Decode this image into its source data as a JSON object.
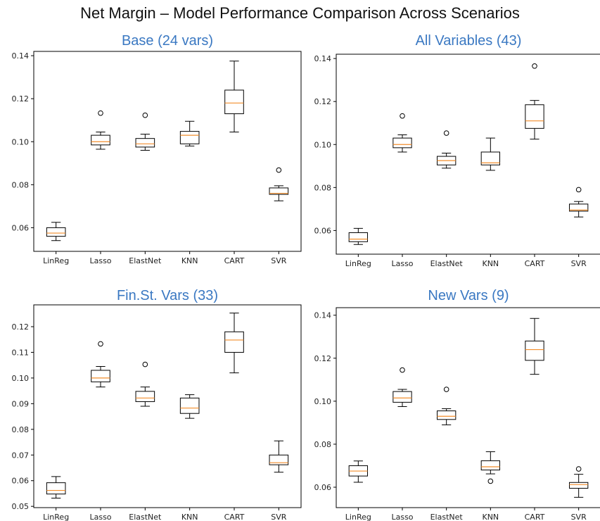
{
  "title": "Net Margin – Model Performance Comparison Across Scenarios",
  "colors": {
    "subtitle": "#3a78c2",
    "box_stroke": "#000000",
    "median": "#f28e2b",
    "background": "#ffffff"
  },
  "chart_data": [
    {
      "type": "box",
      "title": "Base (24 vars)",
      "categories": [
        "LinReg",
        "Lasso",
        "ElastNet",
        "KNN",
        "CART",
        "SVR"
      ],
      "ylim": [
        0.049,
        0.142
      ],
      "yticks": [
        0.06,
        0.08,
        0.1,
        0.12,
        0.14
      ],
      "ytick_labels": [
        "0.06",
        "0.08",
        "0.10",
        "0.12",
        "0.14"
      ],
      "boxes": [
        {
          "whislo": 0.054,
          "q1": 0.056,
          "med": 0.0575,
          "q3": 0.06,
          "whishi": 0.0625,
          "fliers": []
        },
        {
          "whislo": 0.0965,
          "q1": 0.0985,
          "med": 0.1,
          "q3": 0.103,
          "whishi": 0.1045,
          "fliers": [
            0.1133
          ]
        },
        {
          "whislo": 0.096,
          "q1": 0.0975,
          "med": 0.099,
          "q3": 0.1015,
          "whishi": 0.1035,
          "fliers": [
            0.1123
          ]
        },
        {
          "whislo": 0.098,
          "q1": 0.099,
          "med": 0.103,
          "q3": 0.1048,
          "whishi": 0.1095,
          "fliers": []
        },
        {
          "whislo": 0.1045,
          "q1": 0.113,
          "med": 0.118,
          "q3": 0.124,
          "whishi": 0.1375,
          "fliers": []
        },
        {
          "whislo": 0.0725,
          "q1": 0.0755,
          "med": 0.076,
          "q3": 0.0785,
          "whishi": 0.0795,
          "fliers": [
            0.0868
          ]
        }
      ]
    },
    {
      "type": "box",
      "title": "All Variables (43)",
      "categories": [
        "LinReg",
        "Lasso",
        "ElastNet",
        "KNN",
        "CART",
        "SVR"
      ],
      "ylim": [
        0.049,
        0.142
      ],
      "yticks": [
        0.06,
        0.08,
        0.1,
        0.12,
        0.14
      ],
      "ytick_labels": [
        "0.06",
        "0.08",
        "0.10",
        "0.12",
        "0.14"
      ],
      "boxes": [
        {
          "whislo": 0.0535,
          "q1": 0.0548,
          "med": 0.056,
          "q3": 0.059,
          "whishi": 0.061,
          "fliers": []
        },
        {
          "whislo": 0.0965,
          "q1": 0.0985,
          "med": 0.1,
          "q3": 0.103,
          "whishi": 0.1045,
          "fliers": [
            0.1133
          ]
        },
        {
          "whislo": 0.089,
          "q1": 0.0905,
          "med": 0.0925,
          "q3": 0.0945,
          "whishi": 0.096,
          "fliers": [
            0.1053
          ]
        },
        {
          "whislo": 0.088,
          "q1": 0.0905,
          "med": 0.0915,
          "q3": 0.0965,
          "whishi": 0.103,
          "fliers": []
        },
        {
          "whislo": 0.1025,
          "q1": 0.1075,
          "med": 0.111,
          "q3": 0.1185,
          "whishi": 0.1205,
          "fliers": [
            0.1365
          ]
        },
        {
          "whislo": 0.0663,
          "q1": 0.069,
          "med": 0.0695,
          "q3": 0.0723,
          "whishi": 0.0735,
          "fliers": [
            0.079
          ]
        }
      ]
    },
    {
      "type": "box",
      "title": "Fin.St. Vars (33)",
      "categories": [
        "LinReg",
        "Lasso",
        "ElastNet",
        "KNN",
        "CART",
        "SVR"
      ],
      "ylim": [
        0.0495,
        0.1285
      ],
      "yticks": [
        0.05,
        0.06,
        0.07,
        0.08,
        0.09,
        0.1,
        0.11,
        0.12
      ],
      "ytick_labels": [
        "0.05",
        "0.06",
        "0.07",
        "0.08",
        "0.09",
        "0.10",
        "0.11",
        "0.12"
      ],
      "boxes": [
        {
          "whislo": 0.0532,
          "q1": 0.0548,
          "med": 0.0562,
          "q3": 0.0592,
          "whishi": 0.0616,
          "fliers": []
        },
        {
          "whislo": 0.0965,
          "q1": 0.0985,
          "med": 0.1,
          "q3": 0.103,
          "whishi": 0.1045,
          "fliers": [
            0.1133
          ]
        },
        {
          "whislo": 0.089,
          "q1": 0.0908,
          "med": 0.0922,
          "q3": 0.0948,
          "whishi": 0.0965,
          "fliers": [
            0.1053
          ]
        },
        {
          "whislo": 0.0843,
          "q1": 0.0862,
          "med": 0.0883,
          "q3": 0.0922,
          "whishi": 0.0935,
          "fliers": []
        },
        {
          "whislo": 0.102,
          "q1": 0.11,
          "med": 0.1148,
          "q3": 0.118,
          "whishi": 0.1253,
          "fliers": []
        },
        {
          "whislo": 0.0633,
          "q1": 0.0662,
          "med": 0.067,
          "q3": 0.07,
          "whishi": 0.0755,
          "fliers": []
        }
      ]
    },
    {
      "type": "box",
      "title": "New Vars (9)",
      "categories": [
        "LinReg",
        "Lasso",
        "ElastNet",
        "KNN",
        "CART",
        "SVR"
      ],
      "ylim": [
        0.0505,
        0.1435
      ],
      "yticks": [
        0.06,
        0.08,
        0.1,
        0.12,
        0.14
      ],
      "ytick_labels": [
        "0.06",
        "0.08",
        "0.10",
        "0.12",
        "0.14"
      ],
      "boxes": [
        {
          "whislo": 0.0623,
          "q1": 0.0652,
          "med": 0.0675,
          "q3": 0.07,
          "whishi": 0.0722,
          "fliers": []
        },
        {
          "whislo": 0.0975,
          "q1": 0.0995,
          "med": 0.1015,
          "q3": 0.1045,
          "whishi": 0.1055,
          "fliers": [
            0.1145
          ]
        },
        {
          "whislo": 0.089,
          "q1": 0.0915,
          "med": 0.093,
          "q3": 0.0955,
          "whishi": 0.0965,
          "fliers": [
            0.1055
          ]
        },
        {
          "whislo": 0.0662,
          "q1": 0.068,
          "med": 0.0695,
          "q3": 0.0723,
          "whishi": 0.0765,
          "fliers": [
            0.0628
          ]
        },
        {
          "whislo": 0.1125,
          "q1": 0.119,
          "med": 0.124,
          "q3": 0.128,
          "whishi": 0.1385,
          "fliers": []
        },
        {
          "whislo": 0.0553,
          "q1": 0.0595,
          "med": 0.0612,
          "q3": 0.0622,
          "whishi": 0.066,
          "fliers": [
            0.0685
          ]
        }
      ]
    }
  ]
}
